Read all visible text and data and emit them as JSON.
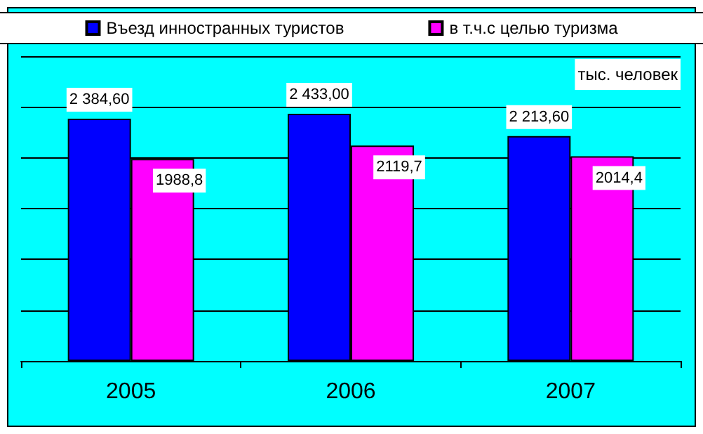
{
  "chart_data": {
    "type": "bar",
    "categories": [
      "2005",
      "2006",
      "2007"
    ],
    "series": [
      {
        "name": "Въезд инностранных туристов",
        "color": "#0000ff",
        "values": [
          2384.6,
          2433.0,
          2213.6
        ],
        "value_labels": [
          "2 384,60",
          "2 433,00",
          "2 213,60"
        ]
      },
      {
        "name": "в т.ч.с целью туризма",
        "color": "#ff00ff",
        "values": [
          1988.8,
          2119.7,
          2014.4
        ],
        "value_labels": [
          "1988,8",
          "2119,7",
          "2014,4"
        ]
      }
    ],
    "ylim": [
      0,
      3000
    ],
    "yticks": [
      {
        "value": 0,
        "label": null
      },
      {
        "value": 500,
        "label": null
      },
      {
        "value": 1000,
        "label": null
      },
      {
        "value": 1500,
        "label": null
      },
      {
        "value": 2000,
        "label": null
      },
      {
        "value": 2500,
        "label": null
      },
      {
        "value": 3000,
        "label": null
      }
    ],
    "tick_labels": "x",
    "grid": "y",
    "legend": "top",
    "annotations": [
      "тыс. человек"
    ]
  }
}
